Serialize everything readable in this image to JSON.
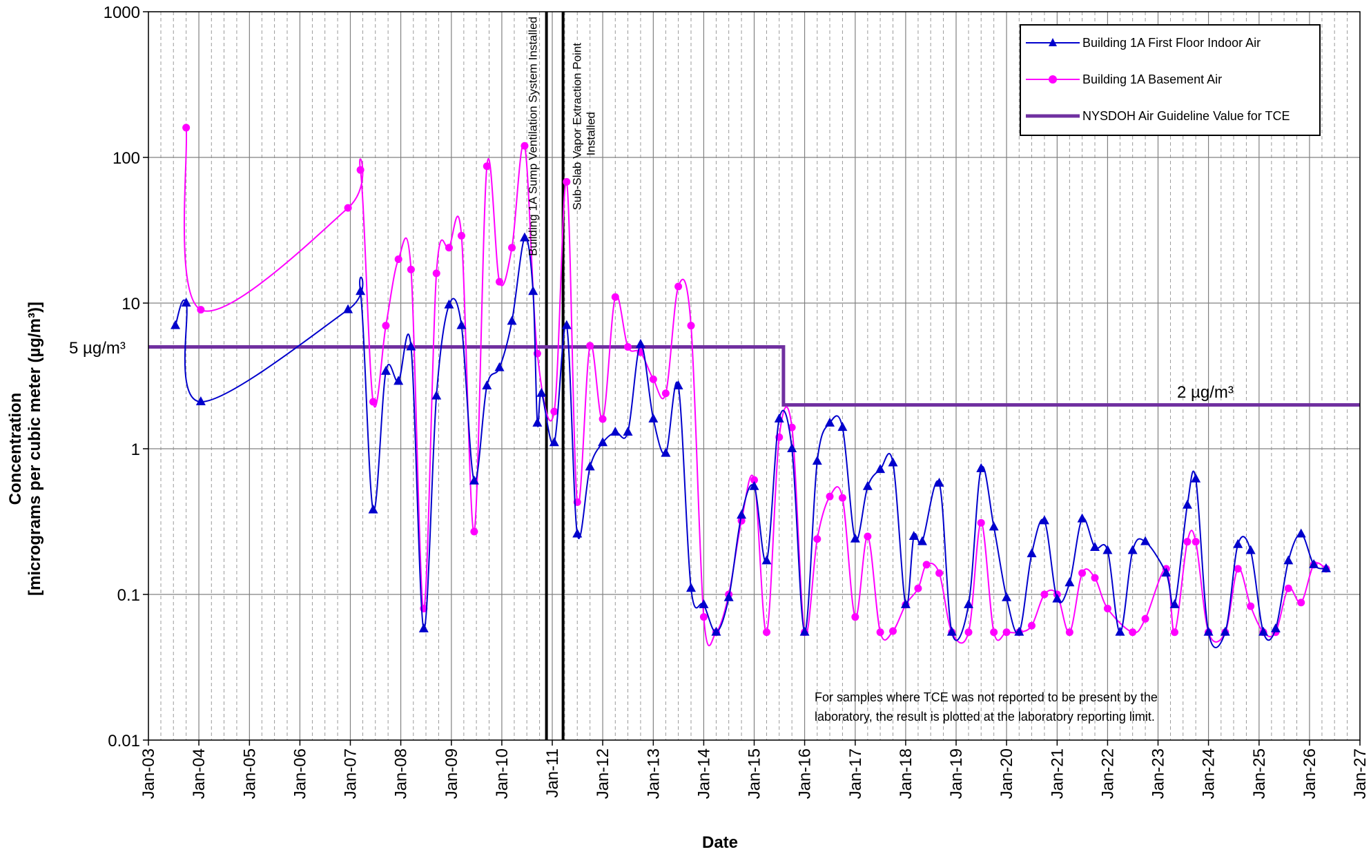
{
  "chart_data": {
    "type": "line",
    "title": "",
    "xlabel": "Date",
    "ylabel_line1": "Concentration",
    "ylabel_line2": "[micrograms per cubic meter (µg/m³)]",
    "y_scale": "log",
    "ylim": [
      0.01,
      1000
    ],
    "y_ticks": [
      "1000",
      "100",
      "10",
      "1",
      "0.1",
      "0.01"
    ],
    "x_range": [
      "2003-01-01",
      "2027-01-01"
    ],
    "x_ticks": [
      "Jan-03",
      "Jan-04",
      "Jan-05",
      "Jan-06",
      "Jan-07",
      "Jan-08",
      "Jan-09",
      "Jan-10",
      "Jan-11",
      "Jan-12",
      "Jan-13",
      "Jan-14",
      "Jan-15",
      "Jan-16",
      "Jan-17",
      "Jan-18",
      "Jan-19",
      "Jan-20",
      "Jan-21",
      "Jan-22",
      "Jan-23",
      "Jan-24",
      "Jan-25",
      "Jan-26",
      "Jan-27"
    ],
    "grid": true,
    "legend_placement": "top-right",
    "series": [
      {
        "name": "Building 1A First Floor Indoor Air",
        "color": "#0000CC",
        "marker": "triangle",
        "points": [
          [
            "2003-07-15",
            7
          ],
          [
            "2003-10-01",
            10
          ],
          [
            "2004-01-15",
            2.1
          ],
          [
            "2006-12-15",
            9
          ],
          [
            "2007-03-15",
            12
          ],
          [
            "2007-06-15",
            0.38
          ],
          [
            "2007-09-15",
            3.4
          ],
          [
            "2007-12-15",
            2.9
          ],
          [
            "2008-03-15",
            5
          ],
          [
            "2008-06-15",
            0.058
          ],
          [
            "2008-09-15",
            2.3
          ],
          [
            "2008-12-15",
            9.7
          ],
          [
            "2009-03-15",
            7
          ],
          [
            "2009-06-15",
            0.6
          ],
          [
            "2009-09-15",
            2.7
          ],
          [
            "2009-12-15",
            3.6
          ],
          [
            "2010-03-15",
            7.5
          ],
          [
            "2010-06-15",
            28
          ],
          [
            "2010-08-15",
            12
          ],
          [
            "2010-09-15",
            1.5
          ],
          [
            "2010-10-15",
            2.4
          ],
          [
            "2011-01-15",
            1.1
          ],
          [
            "2011-04-15",
            7
          ],
          [
            "2011-07-01",
            0.26
          ],
          [
            "2011-10-01",
            0.75
          ],
          [
            "2012-01-01",
            1.1
          ],
          [
            "2012-04-01",
            1.3
          ],
          [
            "2012-07-01",
            1.3
          ],
          [
            "2012-10-01",
            5.2
          ],
          [
            "2013-01-01",
            1.6
          ],
          [
            "2013-04-01",
            0.93
          ],
          [
            "2013-07-01",
            2.7
          ],
          [
            "2013-10-01",
            0.11
          ],
          [
            "2014-01-01",
            0.085
          ],
          [
            "2014-04-01",
            0.055
          ],
          [
            "2014-07-01",
            0.095
          ],
          [
            "2014-10-01",
            0.35
          ],
          [
            "2015-01-01",
            0.55
          ],
          [
            "2015-04-01",
            0.17
          ],
          [
            "2015-07-01",
            1.6
          ],
          [
            "2015-10-01",
            1.0
          ],
          [
            "2016-01-01",
            0.055
          ],
          [
            "2016-04-01",
            0.82
          ],
          [
            "2016-07-01",
            1.5
          ],
          [
            "2016-10-01",
            1.4
          ],
          [
            "2017-01-01",
            0.24
          ],
          [
            "2017-04-01",
            0.55
          ],
          [
            "2017-07-01",
            0.72
          ],
          [
            "2017-10-01",
            0.8
          ],
          [
            "2018-01-01",
            0.085
          ],
          [
            "2018-03-01",
            0.25
          ],
          [
            "2018-05-01",
            0.23
          ],
          [
            "2018-09-01",
            0.58
          ],
          [
            "2018-12-01",
            0.055
          ],
          [
            "2019-04-01",
            0.085
          ],
          [
            "2019-07-01",
            0.73
          ],
          [
            "2019-10-01",
            0.29
          ],
          [
            "2020-01-01",
            0.095
          ],
          [
            "2020-04-01",
            0.055
          ],
          [
            "2020-07-01",
            0.19
          ],
          [
            "2020-10-01",
            0.32
          ],
          [
            "2021-01-01",
            0.093
          ],
          [
            "2021-04-01",
            0.12
          ],
          [
            "2021-07-01",
            0.33
          ],
          [
            "2021-10-01",
            0.21
          ],
          [
            "2022-01-01",
            0.2
          ],
          [
            "2022-04-01",
            0.055
          ],
          [
            "2022-07-01",
            0.2
          ],
          [
            "2022-10-01",
            0.23
          ],
          [
            "2023-03-01",
            0.14
          ],
          [
            "2023-05-01",
            0.085
          ],
          [
            "2023-08-01",
            0.41
          ],
          [
            "2023-10-01",
            0.62
          ],
          [
            "2024-01-01",
            0.055
          ],
          [
            "2024-05-01",
            0.055
          ],
          [
            "2024-08-01",
            0.22
          ],
          [
            "2024-11-01",
            0.2
          ],
          [
            "2025-02-01",
            0.055
          ],
          [
            "2025-05-01",
            0.058
          ],
          [
            "2025-08-01",
            0.17
          ],
          [
            "2025-11-01",
            0.26
          ],
          [
            "2026-02-01",
            0.16
          ],
          [
            "2026-05-01",
            0.15
          ]
        ]
      },
      {
        "name": "Building 1A Basement Air",
        "color": "#FF00FF",
        "marker": "circle",
        "points": [
          [
            "2003-10-01",
            160
          ],
          [
            "2004-01-15",
            9
          ],
          [
            "2006-12-15",
            45
          ],
          [
            "2007-03-15",
            82
          ],
          [
            "2007-06-15",
            2.1
          ],
          [
            "2007-09-15",
            7
          ],
          [
            "2007-12-15",
            20
          ],
          [
            "2008-03-15",
            17
          ],
          [
            "2008-06-15",
            0.08
          ],
          [
            "2008-09-15",
            16
          ],
          [
            "2008-12-15",
            24
          ],
          [
            "2009-03-15",
            29
          ],
          [
            "2009-06-15",
            0.27
          ],
          [
            "2009-09-15",
            87
          ],
          [
            "2009-12-15",
            14
          ],
          [
            "2010-03-15",
            24
          ],
          [
            "2010-06-15",
            120
          ],
          [
            "2010-09-15",
            4.5
          ],
          [
            "2011-01-15",
            1.8
          ],
          [
            "2011-04-15",
            68
          ],
          [
            "2011-07-01",
            0.43
          ],
          [
            "2011-10-01",
            5.1
          ],
          [
            "2012-01-01",
            1.6
          ],
          [
            "2012-04-01",
            11
          ],
          [
            "2012-07-01",
            5
          ],
          [
            "2012-10-01",
            4.6
          ],
          [
            "2013-01-01",
            3
          ],
          [
            "2013-04-01",
            2.4
          ],
          [
            "2013-07-01",
            13
          ],
          [
            "2013-10-01",
            7
          ],
          [
            "2014-01-01",
            0.07
          ],
          [
            "2014-04-01",
            0.055
          ],
          [
            "2014-07-01",
            0.1
          ],
          [
            "2014-10-01",
            0.32
          ],
          [
            "2015-01-01",
            0.61
          ],
          [
            "2015-04-01",
            0.055
          ],
          [
            "2015-07-01",
            1.2
          ],
          [
            "2015-10-01",
            1.4
          ],
          [
            "2016-01-01",
            0.055
          ],
          [
            "2016-04-01",
            0.24
          ],
          [
            "2016-07-01",
            0.47
          ],
          [
            "2016-10-01",
            0.46
          ],
          [
            "2017-01-01",
            0.07
          ],
          [
            "2017-04-01",
            0.25
          ],
          [
            "2017-07-01",
            0.055
          ],
          [
            "2017-10-01",
            0.056
          ],
          [
            "2018-01-01",
            0.085
          ],
          [
            "2018-04-01",
            0.11
          ],
          [
            "2018-06-01",
            0.16
          ],
          [
            "2018-09-01",
            0.14
          ],
          [
            "2018-12-01",
            0.055
          ],
          [
            "2019-04-01",
            0.055
          ],
          [
            "2019-07-01",
            0.31
          ],
          [
            "2019-10-01",
            0.055
          ],
          [
            "2020-01-01",
            0.055
          ],
          [
            "2020-04-01",
            0.055
          ],
          [
            "2020-07-01",
            0.061
          ],
          [
            "2020-10-01",
            0.1
          ],
          [
            "2021-01-01",
            0.1
          ],
          [
            "2021-04-01",
            0.055
          ],
          [
            "2021-07-01",
            0.14
          ],
          [
            "2021-10-01",
            0.13
          ],
          [
            "2022-01-01",
            0.08
          ],
          [
            "2022-07-01",
            0.055
          ],
          [
            "2022-10-01",
            0.068
          ],
          [
            "2023-03-01",
            0.15
          ],
          [
            "2023-05-01",
            0.055
          ],
          [
            "2023-08-01",
            0.23
          ],
          [
            "2023-10-01",
            0.23
          ],
          [
            "2024-01-01",
            0.055
          ],
          [
            "2024-05-01",
            0.055
          ],
          [
            "2024-08-01",
            0.15
          ],
          [
            "2024-11-01",
            0.083
          ],
          [
            "2025-02-01",
            0.055
          ],
          [
            "2025-05-01",
            0.055
          ],
          [
            "2025-08-01",
            0.11
          ],
          [
            "2025-11-01",
            0.088
          ],
          [
            "2026-02-01",
            0.16
          ],
          [
            "2026-05-01",
            0.15
          ]
        ]
      },
      {
        "name": "NYSDOH Air Guideline Value for TCE",
        "color": "#7030A0",
        "marker": "none",
        "points": [
          [
            "2003-01-01",
            5
          ],
          [
            "2015-08-01",
            5
          ],
          [
            "2015-08-01",
            2
          ],
          [
            "2027-01-01",
            2
          ]
        ]
      }
    ],
    "events": [
      {
        "date": "2010-11-20",
        "label": "Building 1A Sump Ventilation System Installed"
      },
      {
        "date": "2011-03-20",
        "label_line1": "Sub-Slab Vapor Extraction Point",
        "label_line2": "Installed"
      }
    ],
    "guideline_labels": {
      "first": "5 µg/m³",
      "second": "2 µg/m³"
    },
    "note_line1": "For samples where TCE was not reported to be present by the",
    "note_line2": "laboratory, the result is plotted at the laboratory reporting limit."
  }
}
